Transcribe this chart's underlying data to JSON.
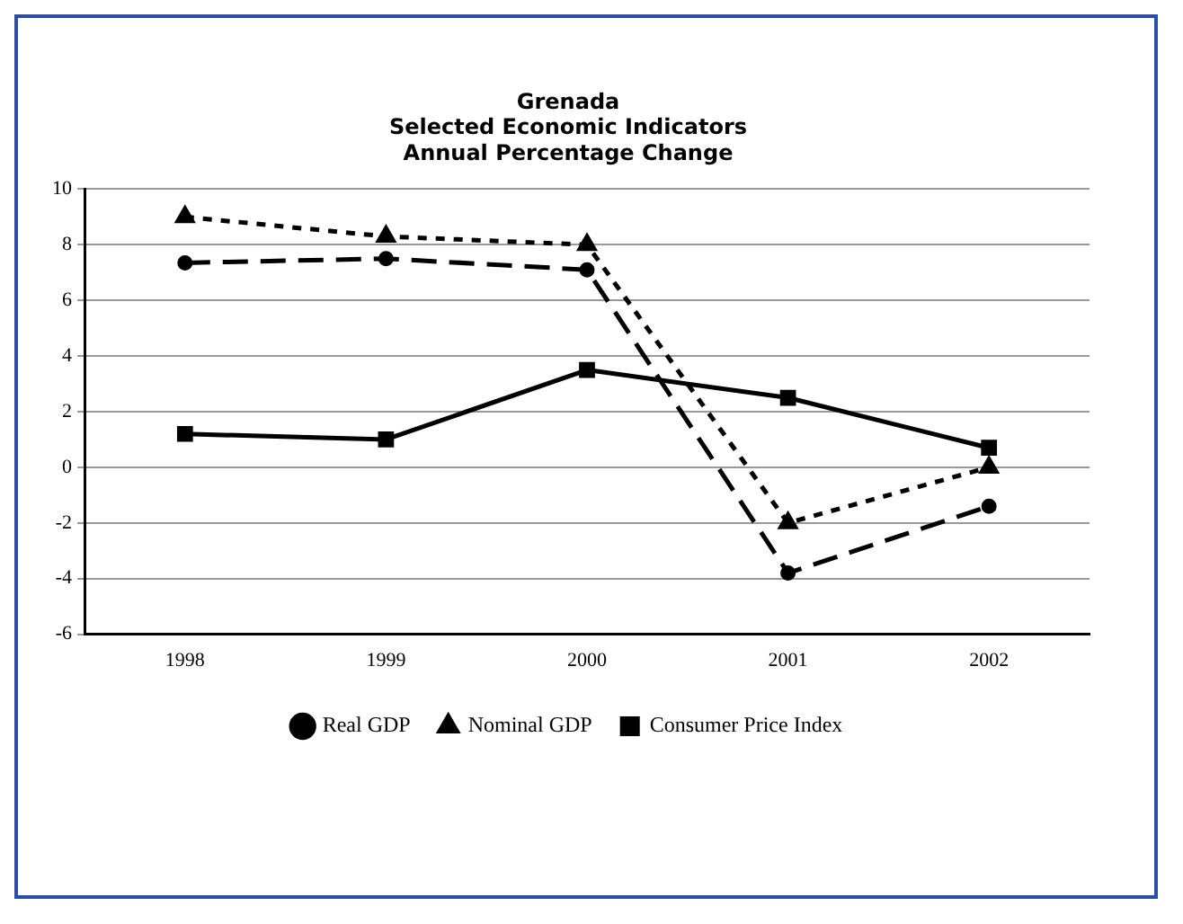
{
  "chart_data": {
    "type": "line",
    "title": "Grenada\nSelected Economic Indicators\nAnnual Percentage Change",
    "categories": [
      "1998",
      "1999",
      "2000",
      "2001",
      "2002"
    ],
    "series": [
      {
        "name": "Real GDP",
        "color": "#000000",
        "values": [
          7.35,
          7.5,
          7.1,
          -3.8,
          -1.4
        ],
        "line_style": "dashed",
        "marker": "circle"
      },
      {
        "name": "Nominal GDP",
        "color": "#000000",
        "values": [
          9.0,
          8.3,
          8.0,
          -2.0,
          0.0
        ],
        "line_style": "dotted",
        "marker": "triangle"
      },
      {
        "name": "Consumer Price Index",
        "color": "#000000",
        "values": [
          1.2,
          1.0,
          3.5,
          2.5,
          0.7
        ],
        "line_style": "solid",
        "marker": "square"
      }
    ],
    "ylim": [
      -6,
      10
    ],
    "yticks": [
      -6,
      -4,
      -2,
      0,
      2,
      4,
      6,
      8,
      10
    ],
    "grid": "y",
    "legend": "bottom"
  }
}
